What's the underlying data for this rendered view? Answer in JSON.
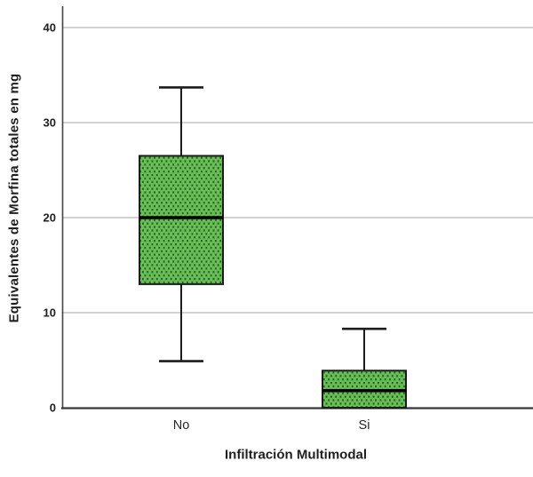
{
  "chart_data": {
    "type": "boxplot",
    "title": "",
    "xlabel": "Infiltración Multimodal",
    "ylabel": "Equivalentes de Morfina totales en mg",
    "categories": [
      "No",
      "Si"
    ],
    "yticks": [
      0,
      10,
      20,
      30,
      40
    ],
    "ylim": [
      0,
      42.3
    ],
    "grid": "horizontal-gridlines-at-yticks-above-zero",
    "legend": "none",
    "series": [
      {
        "category": "No",
        "whisker_low": 4.9,
        "q1": 13.0,
        "median": 20.0,
        "q3": 26.5,
        "whisker_high": 33.7,
        "outliers": []
      },
      {
        "category": "Si",
        "whisker_low": 0.0,
        "q1": 0.0,
        "median": 1.8,
        "q3": 3.9,
        "whisker_high": 8.3,
        "outliers": []
      }
    ],
    "colors": {
      "background": "#ffffff",
      "box_fill": "#69be55",
      "box_dots": "#235f28",
      "box_border": "#1c1c1c",
      "median_line": "#000000",
      "whisker": "#1c1c1c",
      "gridline": "#b8b8b8",
      "y_axis_line": "#4a4a4a",
      "x_axis_line": "#383838",
      "label_text": "#1f1f1f"
    }
  }
}
